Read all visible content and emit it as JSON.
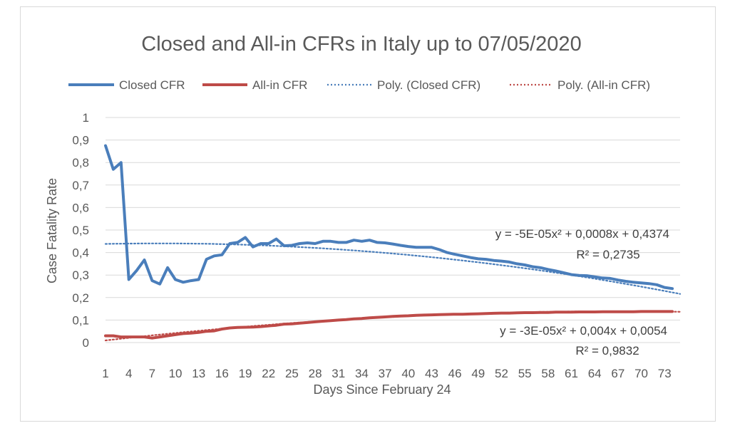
{
  "chart_data": {
    "type": "line",
    "title": "Closed and All-in CFRs in Italy up to 07/05/2020",
    "xlabel": "Days Since February 24",
    "ylabel": "Case Fatality Rate",
    "xlim": [
      1,
      75
    ],
    "ylim": [
      0,
      1
    ],
    "x_ticks": [
      "1",
      "4",
      "7",
      "10",
      "13",
      "16",
      "19",
      "22",
      "25",
      "28",
      "31",
      "34",
      "37",
      "40",
      "43",
      "46",
      "49",
      "52",
      "55",
      "58",
      "61",
      "64",
      "67",
      "70",
      "73"
    ],
    "y_ticks": [
      "0",
      "0,1",
      "0,2",
      "0,3",
      "0,4",
      "0,5",
      "0,6",
      "0,7",
      "0,8",
      "0,9",
      "1"
    ],
    "legend": [
      "Closed CFR",
      "All-in CFR",
      "Poly. (Closed CFR)",
      "Poly. (All-in CFR)"
    ],
    "series": [
      {
        "name": "Closed CFR",
        "color": "#4a7ebb",
        "x": [
          1,
          2,
          3,
          4,
          5,
          6,
          7,
          8,
          9,
          10,
          11,
          12,
          13,
          14,
          15,
          16,
          17,
          18,
          19,
          20,
          21,
          22,
          23,
          24,
          25,
          26,
          27,
          28,
          29,
          30,
          31,
          32,
          33,
          34,
          35,
          36,
          37,
          38,
          39,
          40,
          41,
          42,
          43,
          44,
          45,
          46,
          47,
          48,
          49,
          50,
          51,
          52,
          53,
          54,
          55,
          56,
          57,
          58,
          59,
          60,
          61,
          62,
          63,
          64,
          65,
          66,
          67,
          68,
          69,
          70,
          71,
          72,
          73,
          74
        ],
        "values": [
          0.875,
          0.77,
          0.8,
          0.28,
          0.32,
          0.367,
          0.275,
          0.26,
          0.333,
          0.28,
          0.268,
          0.275,
          0.28,
          0.37,
          0.385,
          0.39,
          0.44,
          0.445,
          0.467,
          0.425,
          0.44,
          0.44,
          0.46,
          0.43,
          0.432,
          0.44,
          0.443,
          0.44,
          0.45,
          0.45,
          0.445,
          0.445,
          0.455,
          0.45,
          0.455,
          0.445,
          0.443,
          0.438,
          0.432,
          0.427,
          0.423,
          0.423,
          0.423,
          0.413,
          0.4,
          0.392,
          0.385,
          0.378,
          0.372,
          0.37,
          0.365,
          0.362,
          0.358,
          0.35,
          0.345,
          0.337,
          0.333,
          0.325,
          0.318,
          0.31,
          0.302,
          0.298,
          0.297,
          0.292,
          0.287,
          0.285,
          0.278,
          0.272,
          0.268,
          0.265,
          0.262,
          0.257,
          0.245,
          0.24
        ]
      },
      {
        "name": "All-in CFR",
        "color": "#be4b48",
        "x": [
          1,
          2,
          3,
          4,
          5,
          6,
          7,
          8,
          9,
          10,
          11,
          12,
          13,
          14,
          15,
          16,
          17,
          18,
          19,
          20,
          21,
          22,
          23,
          24,
          25,
          26,
          27,
          28,
          29,
          30,
          31,
          32,
          33,
          34,
          35,
          36,
          37,
          38,
          39,
          40,
          41,
          42,
          43,
          44,
          45,
          46,
          47,
          48,
          49,
          50,
          51,
          52,
          53,
          54,
          55,
          56,
          57,
          58,
          59,
          60,
          61,
          62,
          63,
          64,
          65,
          66,
          67,
          68,
          69,
          70,
          71,
          72,
          73,
          74
        ],
        "values": [
          0.03,
          0.03,
          0.025,
          0.025,
          0.025,
          0.025,
          0.02,
          0.025,
          0.03,
          0.035,
          0.04,
          0.042,
          0.045,
          0.05,
          0.052,
          0.06,
          0.065,
          0.067,
          0.068,
          0.069,
          0.071,
          0.074,
          0.077,
          0.082,
          0.083,
          0.086,
          0.089,
          0.092,
          0.095,
          0.097,
          0.1,
          0.102,
          0.105,
          0.107,
          0.11,
          0.112,
          0.114,
          0.116,
          0.118,
          0.119,
          0.121,
          0.122,
          0.123,
          0.124,
          0.125,
          0.126,
          0.126,
          0.127,
          0.128,
          0.129,
          0.13,
          0.131,
          0.131,
          0.132,
          0.133,
          0.133,
          0.134,
          0.134,
          0.135,
          0.135,
          0.135,
          0.136,
          0.136,
          0.136,
          0.137,
          0.137,
          0.137,
          0.137,
          0.137,
          0.138,
          0.138,
          0.138,
          0.138,
          0.138
        ]
      }
    ],
    "trendlines": [
      {
        "name": "Poly. (Closed CFR)",
        "color": "#4a7ebb",
        "a": -5e-05,
        "b": 0.0008,
        "c": 0.4374,
        "x_range": [
          1,
          75
        ],
        "equation": "y = -5E-05x² + 0,0008x + 0,4374",
        "r2": "R² = 0,2735"
      },
      {
        "name": "Poly. (All-in CFR)",
        "color": "#be4b48",
        "a": -3e-05,
        "b": 0.004,
        "c": 0.0054,
        "x_range": [
          1,
          75
        ],
        "equation": "y = -3E-05x² + 0,004x + 0,0054",
        "r2": "R² = 0,9832"
      }
    ],
    "grid": true,
    "legend_position": "top"
  }
}
